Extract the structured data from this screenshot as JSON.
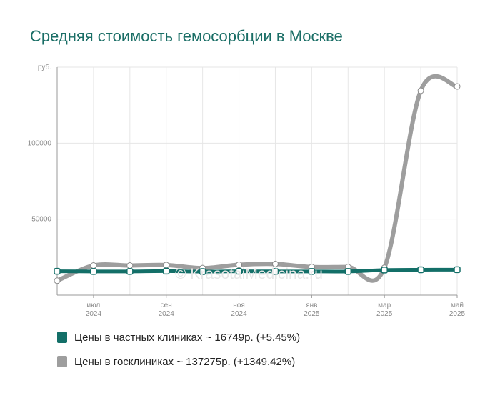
{
  "title": "Средняя стоимость гемосорбции в Москве",
  "watermark": "© KrasotaiMedicina.ru",
  "colors": {
    "private": "#136f68",
    "state": "#9e9e9e",
    "title": "#1a6e66",
    "grid": "#e3e3e3"
  },
  "chart_data": {
    "type": "line",
    "title": "Средняя стоимость гемосорбции в Москве",
    "ylabel": "руб.",
    "ylim": [
      0,
      150000
    ],
    "yticks": [
      {
        "value": 50000,
        "label": "50000"
      },
      {
        "value": 100000,
        "label": "100000"
      },
      {
        "value": 150000,
        "label": "руб."
      }
    ],
    "x": [
      "2024-06",
      "2024-07",
      "2024-08",
      "2024-09",
      "2024-10",
      "2024-11",
      "2024-12",
      "2025-01",
      "2025-02",
      "2025-03",
      "2025-04",
      "2025-05"
    ],
    "xticks": [
      {
        "x": "2024-07",
        "label": "июл",
        "year": "2024"
      },
      {
        "x": "2024-09",
        "label": "сен",
        "year": "2024"
      },
      {
        "x": "2024-11",
        "label": "ноя",
        "year": "2024"
      },
      {
        "x": "2025-01",
        "label": "янв",
        "year": "2025"
      },
      {
        "x": "2025-03",
        "label": "мар",
        "year": "2025"
      },
      {
        "x": "2025-05",
        "label": "май",
        "year": "2025"
      }
    ],
    "grid": true,
    "legend_position": "bottom-left",
    "series": [
      {
        "name": "Цены в частных клиниках",
        "color": "#136f68",
        "values": [
          15700,
          15600,
          15600,
          15800,
          15500,
          15700,
          15600,
          15600,
          15600,
          16500,
          16700,
          16749
        ]
      },
      {
        "name": "Цены в госклиниках",
        "color": "#9e9e9e",
        "values": [
          9500,
          19500,
          19500,
          19800,
          17800,
          20000,
          20500,
          18500,
          18500,
          18000,
          134500,
          137275
        ]
      }
    ]
  },
  "legend": [
    {
      "label": "Цены в частных клиниках ~ 16749р. (+5.45%)",
      "color": "#136f68"
    },
    {
      "label": "Цены в госклиниках ~ 137275р. (+1349.42%)",
      "color": "#9e9e9e"
    }
  ]
}
